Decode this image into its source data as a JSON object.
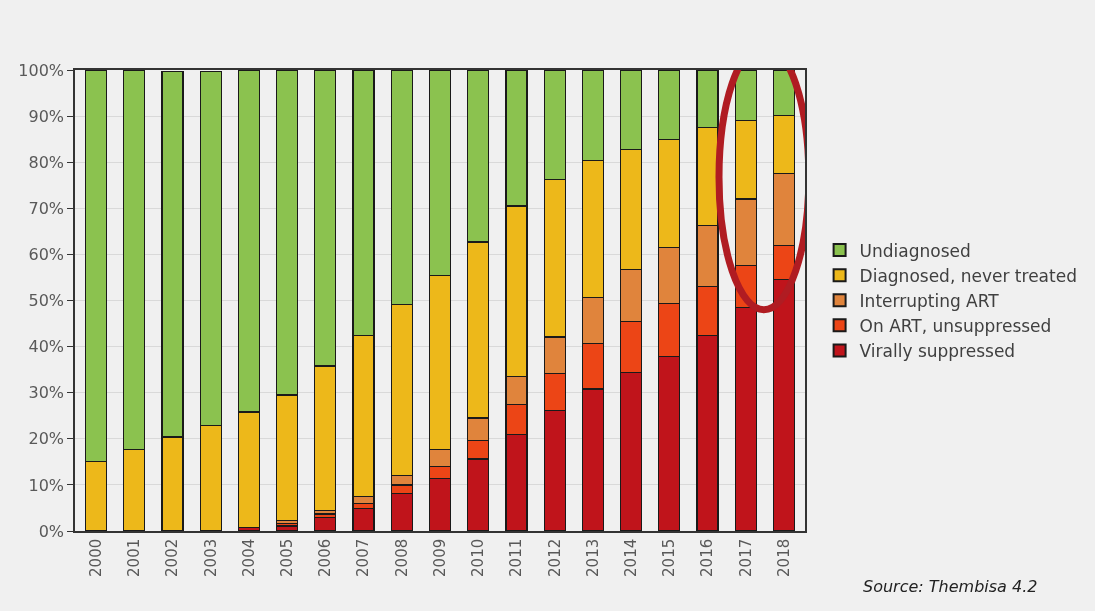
{
  "chart_data": {
    "type": "bar",
    "stacked": true,
    "categories": [
      "2000",
      "2001",
      "2002",
      "2003",
      "2004",
      "2005",
      "2006",
      "2007",
      "2008",
      "2009",
      "2010",
      "2011",
      "2012",
      "2013",
      "2014",
      "2015",
      "2016",
      "2017",
      "2018"
    ],
    "series": [
      {
        "name": "Virally suppressed",
        "color": "#c0141b",
        "values": [
          0,
          0,
          null,
          null,
          0.7,
          1.1,
          3.0,
          4.8,
          8.1,
          11.4,
          15.6,
          21.0,
          26.2,
          30.8,
          34.3,
          37.9,
          42.4,
          48.5,
          54.6
        ]
      },
      {
        "name": "On ART, unsuppressed",
        "color": "#ec4516",
        "values": [
          0,
          0,
          0,
          0,
          0,
          0.6,
          0.7,
          1.1,
          1.9,
          2.6,
          4.0,
          6.5,
          8.0,
          9.9,
          11.2,
          11.5,
          10.7,
          9.1,
          7.4
        ]
      },
      {
        "name": "Interrupting ART",
        "color": "#e0843c",
        "values": [
          0,
          0,
          0,
          0,
          0,
          0.5,
          0.7,
          1.6,
          2.0,
          3.6,
          4.9,
          6.1,
          7.9,
          10.0,
          11.3,
          12.1,
          13.1,
          14.4,
          15.5
        ]
      },
      {
        "name": "Diagnosed, never treated",
        "color": "#edb81a",
        "values": [
          15.1,
          17.7,
          20.4,
          22.8,
          25.1,
          27.3,
          31.4,
          34.9,
          37.1,
          37.9,
          38.2,
          36.9,
          34.1,
          29.7,
          25.9,
          23.4,
          21.3,
          17.1,
          12.7
        ]
      },
      {
        "name": "Undiagnosed",
        "color": "#8bc24f",
        "values": [
          84.9,
          82.3,
          79.3,
          76.8,
          74.2,
          70.5,
          64.2,
          57.6,
          50.9,
          44.5,
          37.3,
          29.5,
          23.8,
          19.6,
          17.3,
          15.1,
          12.5,
          10.9,
          9.8
        ]
      }
    ],
    "ylim": [
      0,
      100
    ],
    "yticks": [
      {
        "value": 0,
        "label": "0%"
      },
      {
        "value": 10,
        "label": "10%"
      },
      {
        "value": 20,
        "label": "20%"
      },
      {
        "value": 30,
        "label": "30%"
      },
      {
        "value": 40,
        "label": "40%"
      },
      {
        "value": 50,
        "label": "50%"
      },
      {
        "value": 60,
        "label": "60%"
      },
      {
        "value": 70,
        "label": "70%"
      },
      {
        "value": 80,
        "label": "80%"
      },
      {
        "value": 90,
        "label": "90%"
      },
      {
        "value": 100,
        "label": "100%"
      }
    ],
    "grid": "y",
    "legend": "right",
    "annotations": [
      "Source: Thembisa 4.2"
    ]
  }
}
